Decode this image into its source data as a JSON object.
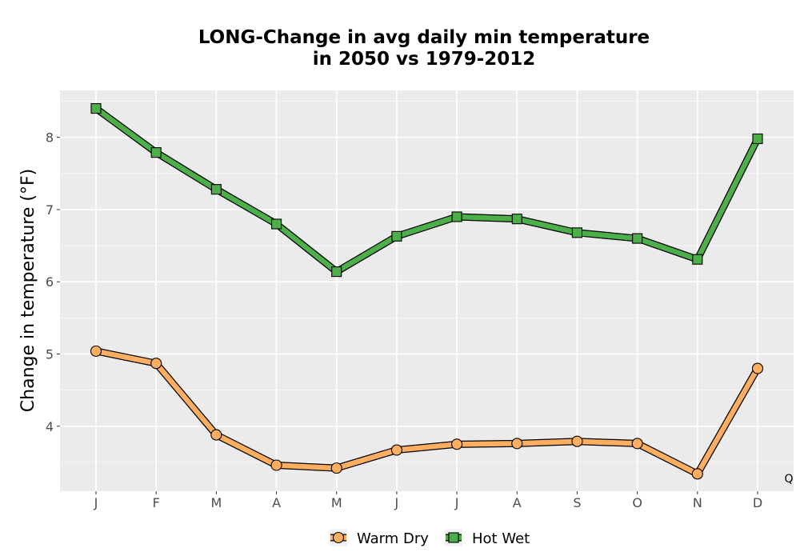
{
  "chart_data": {
    "type": "line",
    "title_line1": "LONG-Change in avg daily min temperature",
    "title_line2": "in 2050 vs 1979-2012",
    "xlabel": "",
    "ylabel": "Change in temperature (°F)",
    "categories": [
      "J",
      "F",
      "M",
      "A",
      "M",
      "J",
      "J",
      "A",
      "S",
      "O",
      "N",
      "D"
    ],
    "ylim": [
      3.1,
      8.65
    ],
    "yticks": [
      4,
      5,
      6,
      7,
      8
    ],
    "grid": true,
    "legend_position": "bottom",
    "series": [
      {
        "name": "Warm Dry",
        "marker": "circle",
        "color": "#fdae61",
        "values": [
          5.04,
          4.87,
          3.88,
          3.46,
          3.42,
          3.67,
          3.75,
          3.76,
          3.79,
          3.76,
          3.34,
          4.8
        ]
      },
      {
        "name": "Hot Wet",
        "marker": "square",
        "color": "#4daf4a",
        "values": [
          8.4,
          7.79,
          7.28,
          6.8,
          6.14,
          6.63,
          6.9,
          6.87,
          6.68,
          6.6,
          6.31,
          7.98
        ]
      }
    ],
    "corner_note": "Q"
  },
  "colors": {
    "panel_bg": "#ebebeb",
    "grid_major": "#ffffff",
    "outline": "#000000"
  }
}
